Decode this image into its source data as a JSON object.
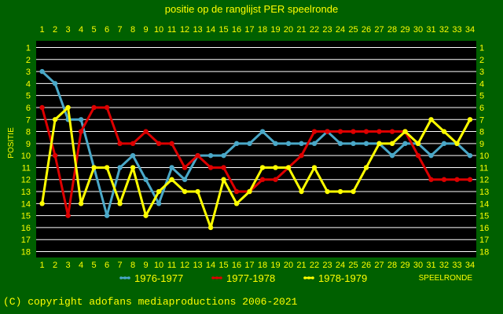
{
  "chart_data": {
    "type": "line",
    "title": "positie op de ranglijst PER speelronde",
    "xlabel": "SPEELRONDE",
    "ylabel": "POSITIE",
    "x": [
      1,
      2,
      3,
      4,
      5,
      6,
      7,
      8,
      9,
      10,
      11,
      12,
      13,
      14,
      15,
      16,
      17,
      18,
      19,
      20,
      21,
      22,
      23,
      24,
      25,
      26,
      27,
      28,
      29,
      30,
      31,
      32,
      33,
      34
    ],
    "xlim": [
      1,
      34
    ],
    "ylim": [
      1,
      18
    ],
    "y_inverted": true,
    "y_ticks": [
      1,
      2,
      3,
      4,
      5,
      6,
      7,
      8,
      9,
      10,
      11,
      12,
      13,
      14,
      15,
      16,
      17,
      18
    ],
    "grid": true,
    "legend_position": "bottom",
    "series": [
      {
        "name": "1976-1977",
        "color": "#4aa8c8",
        "values": [
          3,
          4,
          7,
          7,
          11,
          15,
          11,
          10,
          12,
          14,
          11,
          12,
          10,
          10,
          10,
          9,
          9,
          8,
          9,
          9,
          9,
          9,
          8,
          9,
          9,
          9,
          9,
          10,
          9,
          9,
          10,
          9,
          9,
          10
        ]
      },
      {
        "name": "1977-1978",
        "color": "#dd0000",
        "values": [
          6,
          10,
          15,
          8,
          6,
          6,
          9,
          9,
          8,
          9,
          9,
          11,
          10,
          11,
          11,
          13,
          13,
          12,
          12,
          11,
          10,
          8,
          8,
          8,
          8,
          8,
          8,
          8,
          8,
          10,
          12,
          12,
          12,
          12
        ]
      },
      {
        "name": "1978-1979",
        "color": "#ffff00",
        "values": [
          14,
          7,
          6,
          14,
          11,
          11,
          14,
          11,
          15,
          13,
          12,
          13,
          13,
          16,
          12,
          14,
          13,
          11,
          11,
          11,
          13,
          11,
          13,
          13,
          13,
          11,
          9,
          9,
          8,
          9,
          7,
          8,
          9,
          7
        ]
      }
    ]
  },
  "footer": {
    "copyright": "(C) copyright adofans mediaproductions 2006-2021"
  },
  "colors": {
    "background": "#006000",
    "plot_background": "#000000",
    "text": "#ffff00",
    "grid": "#ffffff"
  }
}
